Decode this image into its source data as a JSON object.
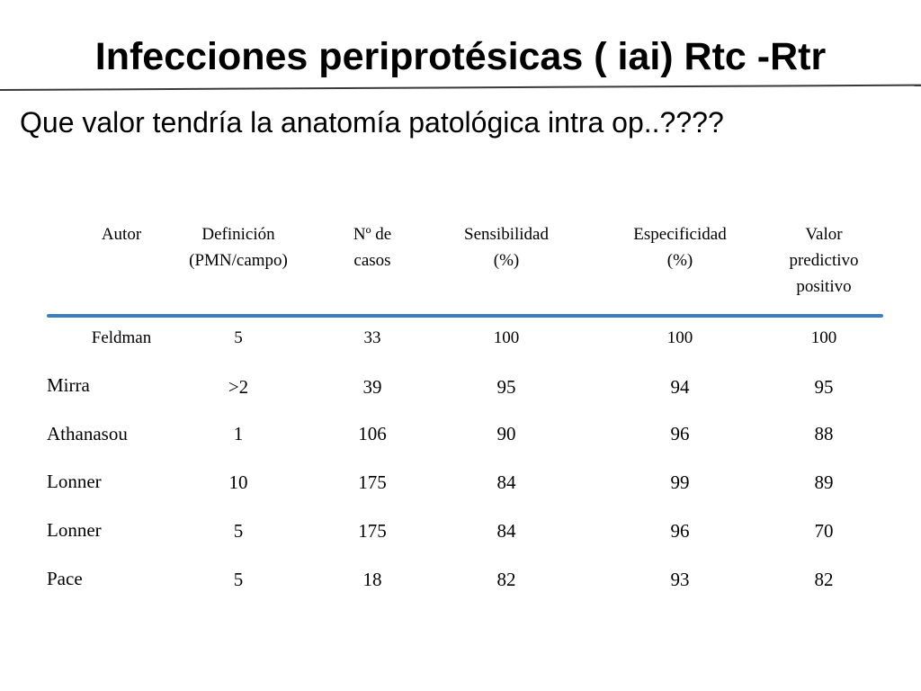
{
  "slide": {
    "title": "Infecciones periprotésicas ( iai) Rtc -Rtr",
    "subtitle": "Que valor tendría la anatomía patológica intra op..????"
  },
  "table": {
    "headers": [
      "Autor",
      "Definición\n(PMN/campo)",
      "Nº de\ncasos",
      "Sensibilidad\n(%)",
      "Especificidad\n(%)",
      "Valor\npredictivo\npositivo"
    ],
    "rows": [
      [
        "Feldman",
        "5",
        "33",
        "100",
        "100",
        "100"
      ],
      [
        "Mirra",
        ">2",
        "39",
        "95",
        "94",
        "95"
      ],
      [
        "Athanasou",
        "1",
        "106",
        "90",
        "96",
        "88"
      ],
      [
        "Lonner",
        "10",
        "175",
        "84",
        "99",
        "89"
      ],
      [
        "Lonner",
        "5",
        "175",
        "84",
        "96",
        "70"
      ],
      [
        "Pace",
        "5",
        "18",
        "82",
        "93",
        "82"
      ]
    ],
    "accent_color": "#3a7fc1"
  }
}
